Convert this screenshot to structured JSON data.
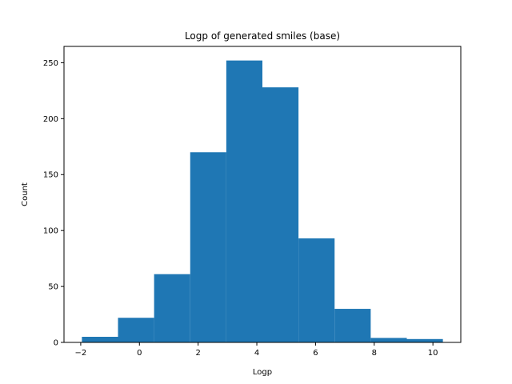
{
  "chart_data": {
    "type": "bar",
    "title": "Logp of generated smiles (base)",
    "xlabel": "Logp",
    "ylabel": "Count",
    "bin_edges": [
      -1.96,
      -0.73,
      0.5,
      1.73,
      2.96,
      4.19,
      5.42,
      6.65,
      7.88,
      9.11,
      10.34
    ],
    "counts": [
      5,
      22,
      61,
      170,
      252,
      228,
      93,
      30,
      4,
      3
    ],
    "xlim": [
      -2.57,
      10.95
    ],
    "ylim": [
      0,
      264.6
    ],
    "xticks": [
      -2,
      0,
      2,
      4,
      6,
      8,
      10
    ],
    "yticks": [
      0,
      50,
      100,
      150,
      200,
      250
    ],
    "bar_color": "#1f77b4",
    "grid": false
  }
}
